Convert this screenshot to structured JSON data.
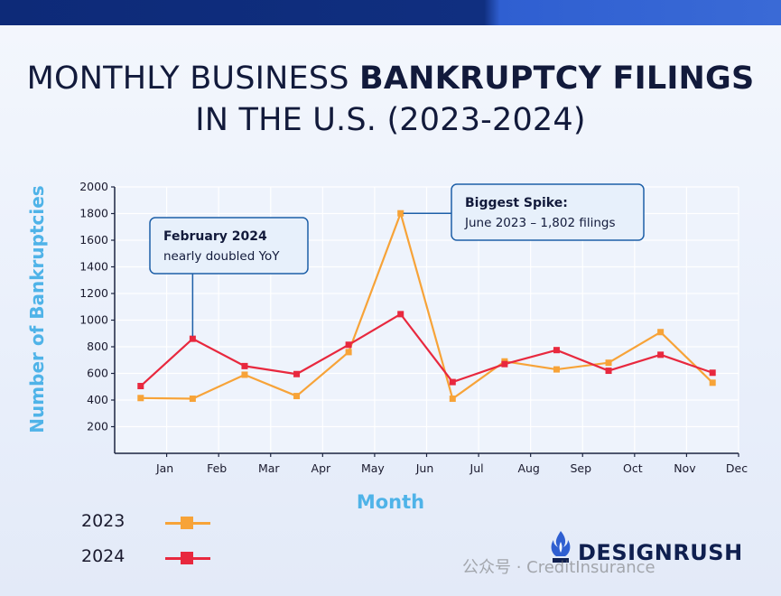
{
  "title": {
    "part1": "MONTHLY BUSINESS ",
    "part2": "BANKRUPTCY FILINGS",
    "line2": "IN THE U.S. (2023-2024)"
  },
  "chart_data": {
    "type": "line",
    "ylabel": "Number of Bankruptcies",
    "xlabel": "Month",
    "ylim": [
      0,
      2000
    ],
    "y_ticks": [
      200,
      400,
      600,
      800,
      1000,
      1200,
      1400,
      1600,
      1800,
      2000
    ],
    "x_ticks": [
      "Jan",
      "Feb",
      "Mar",
      "Apr",
      "May",
      "Jun",
      "Jul",
      "Aug",
      "Sep",
      "Oct",
      "Nov",
      "Dec"
    ],
    "grid": true,
    "series": [
      {
        "name": "2023",
        "color": "#f7a338",
        "marker": "square",
        "x": [
          0.5,
          1.5,
          2.5,
          3.5,
          4.5,
          5.5,
          6.5,
          7.5,
          8.5,
          9.5,
          10.5,
          11.5
        ],
        "values": [
          415,
          410,
          590,
          430,
          760,
          1802,
          410,
          690,
          630,
          680,
          910,
          530
        ]
      },
      {
        "name": "2024",
        "color": "#e8283e",
        "marker": "square",
        "x": [
          0.5,
          1.5,
          2.5,
          3.5,
          4.5,
          5.5,
          6.5,
          7.5,
          8.5,
          9.5,
          10.5,
          11.5
        ],
        "values": [
          505,
          860,
          655,
          595,
          815,
          1045,
          535,
          670,
          775,
          620,
          740,
          605
        ]
      }
    ],
    "annotations": [
      {
        "title": "February 2024",
        "text": "nearly doubled YoY",
        "series": "2024",
        "x": 1.5,
        "y": 860
      },
      {
        "title": "Biggest Spike:",
        "text": "June 2023 – 1,802 filings",
        "series": "2023",
        "x": 5.5,
        "y": 1802
      }
    ],
    "legend": "bottom-left"
  },
  "brand": {
    "name": "DESIGNRUSH"
  },
  "watermark": "公众号 · CreditInsurance"
}
